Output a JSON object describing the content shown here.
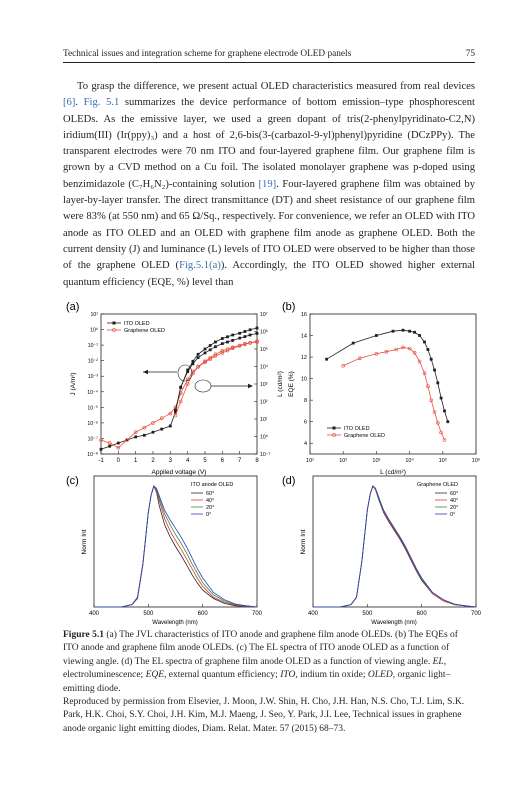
{
  "header": {
    "running_title": "Technical issues and integration scheme for graphene electrode OLED panels",
    "page_number": "75"
  },
  "paragraph": {
    "s1": "To grasp the difference, we present actual OLED characteristics measured from real devices ",
    "ref1": "[6]",
    "s2": ". ",
    "figref1": "Fig. 5.1",
    "s3": " summarizes the device performance of bottom emission–type phosphorescent OLEDs. As the emissive layer, we used a green dopant of tris(2-phenylpyridinato-C2,N) iridium(III) (Ir(ppy)₃) and a host of 2,6-bis(3-(carbazol-9-yl)phenyl)pyridine (DCzPPy). The transparent electrodes were 70 nm ITO and four-layered graphene film. Our graphene film is grown by a CVD method on a Cu foil. The isolated monolayer graphene was p-doped using benzimidazole (C₇H₆N₂)-containing solution ",
    "ref2": "[19]",
    "s4": ". Four-layered graphene film was obtained by layer-by-layer transfer. The direct transmittance (DT) and sheet resistance of our graphene film were 83% (at 550 nm) and 65 Ω/Sq., respectively. For convenience, we refer an OLED with ITO anode as ITO OLED and an OLED with graphene film anode as graphene OLED. Both the current density (J) and luminance (L) levels of ITO OLED were observed to be higher than those of the graphene OLED (",
    "figref2": "Fig.5.1(a)",
    "s5": "). Accordingly, the ITO OLED showed higher external quantum efficiency (EQE, %) level than"
  },
  "figure": {
    "panel_labels": [
      "(a)",
      "(b)",
      "(c)",
      "(d)"
    ],
    "a": {
      "xlabel": "Applied voltage (V)",
      "ylabel_left": "J (A/m²)",
      "ylabel_right": "L (cd/m²)",
      "xticks": [
        "-1",
        "0",
        "1",
        "2",
        "3",
        "4",
        "5",
        "6",
        "7",
        "8"
      ],
      "legend": [
        "ITO OLED",
        "Graphene OLED"
      ],
      "yticks_left": [
        "10¹",
        "10⁰",
        "10⁻¹",
        "10⁻²",
        "10⁻³",
        "10⁻⁴",
        "10⁻⁵",
        "10⁻⁶",
        "10⁻⁷",
        "10⁻⁸"
      ],
      "yticks_right": [
        "10⁷",
        "10⁶",
        "10⁵",
        "10⁴",
        "10³",
        "10²",
        "10¹",
        "10⁰",
        "10⁻¹"
      ]
    },
    "b": {
      "xlabel": "L (cd/m²)",
      "ylabel": "EQE (%)",
      "yticks": [
        "16",
        "14",
        "12",
        "10",
        "8",
        "6",
        "4"
      ],
      "xticks": [
        "10¹",
        "10²",
        "10³",
        "10⁴",
        "10⁵",
        "10⁶"
      ],
      "legend": [
        "ITO OLED",
        "Graphene OLED"
      ]
    },
    "c": {
      "ylabel": "Norm Int",
      "xlabel": "Wavelength (nm)",
      "xticks": [
        "400",
        "500",
        "600",
        "700"
      ],
      "legend_title": "ITO anode OLED",
      "legend": [
        "60°",
        "40°",
        "20°",
        "0°"
      ]
    },
    "d": {
      "ylabel": "Norm Int",
      "xlabel": "Wavelength (nm)",
      "xticks": [
        "400",
        "500",
        "600",
        "700"
      ],
      "legend_title": "Graphene OLED",
      "legend": [
        "60°",
        "40°",
        "20°",
        "0°"
      ]
    }
  },
  "colors": {
    "ito": "#231f20",
    "graphene": "#e8503e",
    "angle_60": "#2a2a2a",
    "angle_40": "#e23b2e",
    "angle_20": "#2f8f3a",
    "angle_0": "#2f3fbf",
    "link": "#3a6fb0"
  },
  "chart_data": [
    {
      "panel": "a",
      "type": "line",
      "xlabel": "Applied voltage (V)",
      "ylabel": "J (A/m²)",
      "y2label": "L (cd/m²)",
      "xlim": [
        -1,
        8
      ],
      "ylim_log10": [
        -8,
        1
      ],
      "y2lim_log10": [
        -1,
        7
      ],
      "series": [
        {
          "name": "ITO OLED",
          "axis": "J",
          "x": [
            -1,
            -0.5,
            0,
            0.5,
            1,
            1.5,
            2,
            2.5,
            3,
            3.3,
            3.6,
            4,
            4.3,
            4.6,
            5,
            5.3,
            5.6,
            6,
            6.3,
            6.6,
            7,
            7.3,
            7.6,
            8
          ],
          "y_log10": [
            -7.7,
            -7.5,
            -7.3,
            -7.1,
            -6.9,
            -6.8,
            -6.6,
            -6.4,
            -6.2,
            -5.3,
            -3.7,
            -2.7,
            -2.2,
            -1.8,
            -1.5,
            -1.3,
            -1.1,
            -0.9,
            -0.8,
            -0.7,
            -0.55,
            -0.45,
            -0.35,
            -0.25
          ]
        },
        {
          "name": "Graphene OLED",
          "axis": "J",
          "x": [
            -1,
            -0.5,
            0,
            0.5,
            1,
            1.5,
            2,
            2.5,
            3,
            3.3,
            3.6,
            4,
            4.3,
            4.6,
            5,
            5.3,
            5.6,
            6,
            6.3,
            6.6,
            7,
            7.3,
            7.6,
            8
          ],
          "y_log10": [
            -7.1,
            -7.3,
            -7.6,
            -7.1,
            -6.6,
            -6.3,
            -6.0,
            -5.7,
            -5.4,
            -5.0,
            -4.1,
            -3.2,
            -2.7,
            -2.4,
            -2.1,
            -1.9,
            -1.7,
            -1.5,
            -1.35,
            -1.2,
            -1.05,
            -0.95,
            -0.85,
            -0.75
          ]
        },
        {
          "name": "ITO OLED",
          "axis": "L",
          "x": [
            3.3,
            3.6,
            4,
            4.3,
            4.6,
            5,
            5.3,
            5.6,
            6,
            6.3,
            6.6,
            7,
            7.3,
            7.6,
            8
          ],
          "y_log10": [
            1.5,
            2.8,
            3.8,
            4.3,
            4.7,
            5.0,
            5.2,
            5.4,
            5.6,
            5.7,
            5.8,
            5.9,
            6.0,
            6.1,
            6.2
          ]
        },
        {
          "name": "Graphene OLED",
          "axis": "L",
          "x": [
            3.3,
            3.6,
            4,
            4.3,
            4.6,
            5,
            5.3,
            5.6,
            6,
            6.3,
            6.6,
            7,
            7.3,
            7.6,
            8
          ],
          "y_log10": [
            1.2,
            2.0,
            3.0,
            3.6,
            4.0,
            4.3,
            4.5,
            4.7,
            4.9,
            5.0,
            5.1,
            5.2,
            5.3,
            5.35,
            5.4
          ]
        }
      ]
    },
    {
      "panel": "b",
      "type": "line",
      "xlabel": "L (cd/m²)",
      "ylabel": "EQE (%)",
      "xlim_log10": [
        1,
        6
      ],
      "ylim": [
        3,
        16
      ],
      "series": [
        {
          "name": "ITO OLED",
          "x_log10": [
            1.5,
            2.3,
            3.0,
            3.5,
            3.8,
            4.0,
            4.15,
            4.3,
            4.45,
            4.55,
            4.65,
            4.75,
            4.85,
            4.95,
            5.05,
            5.15
          ],
          "y": [
            11.8,
            13.3,
            14.0,
            14.4,
            14.5,
            14.4,
            14.3,
            14.0,
            13.4,
            12.7,
            11.8,
            10.8,
            9.6,
            8.2,
            7.0,
            6.0
          ]
        },
        {
          "name": "Graphene OLED",
          "x_log10": [
            2.0,
            2.5,
            3.0,
            3.3,
            3.6,
            3.8,
            4.0,
            4.15,
            4.3,
            4.45,
            4.55,
            4.65,
            4.75,
            4.85,
            4.95,
            5.05
          ],
          "y": [
            11.2,
            11.9,
            12.3,
            12.5,
            12.7,
            12.9,
            12.8,
            12.4,
            11.6,
            10.5,
            9.3,
            8.0,
            6.9,
            5.9,
            5.0,
            4.3
          ]
        }
      ]
    },
    {
      "panel": "c",
      "type": "line",
      "xlabel": "Wavelength (nm)",
      "ylabel": "Norm Int",
      "xlim": [
        400,
        700
      ],
      "ylim": [
        0,
        1
      ],
      "x": [
        400,
        450,
        470,
        480,
        490,
        500,
        505,
        510,
        515,
        520,
        530,
        540,
        550,
        560,
        570,
        580,
        590,
        600,
        620,
        640,
        660,
        680,
        700
      ],
      "series": [
        {
          "name": "60°",
          "values": [
            0,
            0,
            0.02,
            0.07,
            0.35,
            0.78,
            0.92,
            1.0,
            0.95,
            0.84,
            0.68,
            0.58,
            0.5,
            0.43,
            0.35,
            0.27,
            0.2,
            0.14,
            0.07,
            0.03,
            0.01,
            0.005,
            0
          ]
        },
        {
          "name": "40°",
          "values": [
            0,
            0,
            0.02,
            0.07,
            0.35,
            0.78,
            0.92,
            1.0,
            0.96,
            0.88,
            0.73,
            0.63,
            0.55,
            0.48,
            0.4,
            0.32,
            0.24,
            0.17,
            0.08,
            0.04,
            0.015,
            0.005,
            0
          ]
        },
        {
          "name": "20°",
          "values": [
            0,
            0,
            0.02,
            0.08,
            0.36,
            0.78,
            0.92,
            1.0,
            0.97,
            0.9,
            0.77,
            0.68,
            0.6,
            0.53,
            0.45,
            0.36,
            0.28,
            0.2,
            0.1,
            0.05,
            0.02,
            0.01,
            0
          ]
        },
        {
          "name": "0°",
          "values": [
            0,
            0,
            0.02,
            0.08,
            0.36,
            0.78,
            0.92,
            1.0,
            0.98,
            0.92,
            0.8,
            0.72,
            0.65,
            0.58,
            0.5,
            0.41,
            0.32,
            0.24,
            0.12,
            0.06,
            0.025,
            0.01,
            0
          ]
        }
      ]
    },
    {
      "panel": "d",
      "type": "line",
      "xlabel": "Wavelength (nm)",
      "ylabel": "Norm Int",
      "xlim": [
        400,
        700
      ],
      "ylim": [
        0,
        1
      ],
      "x": [
        400,
        450,
        470,
        480,
        490,
        500,
        505,
        510,
        515,
        520,
        530,
        540,
        550,
        560,
        570,
        580,
        590,
        600,
        620,
        640,
        660,
        680,
        700
      ],
      "series": [
        {
          "name": "60°",
          "values": [
            0,
            0,
            0.02,
            0.08,
            0.38,
            0.8,
            0.93,
            1.0,
            0.97,
            0.9,
            0.78,
            0.7,
            0.63,
            0.56,
            0.48,
            0.39,
            0.3,
            0.22,
            0.11,
            0.05,
            0.02,
            0.01,
            0
          ]
        },
        {
          "name": "40°",
          "values": [
            0,
            0,
            0.02,
            0.08,
            0.38,
            0.8,
            0.93,
            1.0,
            0.97,
            0.91,
            0.79,
            0.71,
            0.64,
            0.57,
            0.49,
            0.4,
            0.31,
            0.23,
            0.11,
            0.05,
            0.02,
            0.01,
            0
          ]
        },
        {
          "name": "20°",
          "values": [
            0,
            0,
            0.02,
            0.08,
            0.38,
            0.8,
            0.93,
            1.0,
            0.98,
            0.91,
            0.8,
            0.72,
            0.65,
            0.58,
            0.5,
            0.41,
            0.32,
            0.23,
            0.12,
            0.06,
            0.02,
            0.01,
            0
          ]
        },
        {
          "name": "0°",
          "values": [
            0,
            0,
            0.02,
            0.08,
            0.38,
            0.8,
            0.93,
            1.0,
            0.98,
            0.92,
            0.8,
            0.72,
            0.65,
            0.58,
            0.5,
            0.41,
            0.32,
            0.24,
            0.12,
            0.06,
            0.025,
            0.01,
            0
          ]
        }
      ]
    }
  ],
  "caption": {
    "label": "Figure 5.1",
    "c1": "  (a) The JVL characteristics of ITO anode and graphene film anode OLEDs. (b) The EQEs of ITO anode and graphene film anode OLEDs. (c) The EL spectra of ITO anode OLED as a function of viewing angle. (d) The EL spectra of graphene film anode OLED as a function of viewing angle. ",
    "ab1": "EL",
    "c2": ", electroluminescence; ",
    "ab2": "EQE",
    "c3": ", external quantum efficiency; ",
    "ab3": "ITO",
    "c4": ", indium tin oxide; ",
    "ab4": "OLED",
    "c5": ", organic light–emitting diode.",
    "credit": "Reproduced by permission from Elsevier, J. Moon, J.W. Shin, H. Cho, J.H. Han, N.S. Cho, T.J. Lim, S.K. Park, H.K. Choi, S.Y. Choi, J.H. Kim, M.J. Maeng, J. Seo, Y. Park, J.I. Lee, Technical issues in graphene anode organic light emitting diodes, Diam. Relat. Mater. 57 (2015) 68–73."
  }
}
